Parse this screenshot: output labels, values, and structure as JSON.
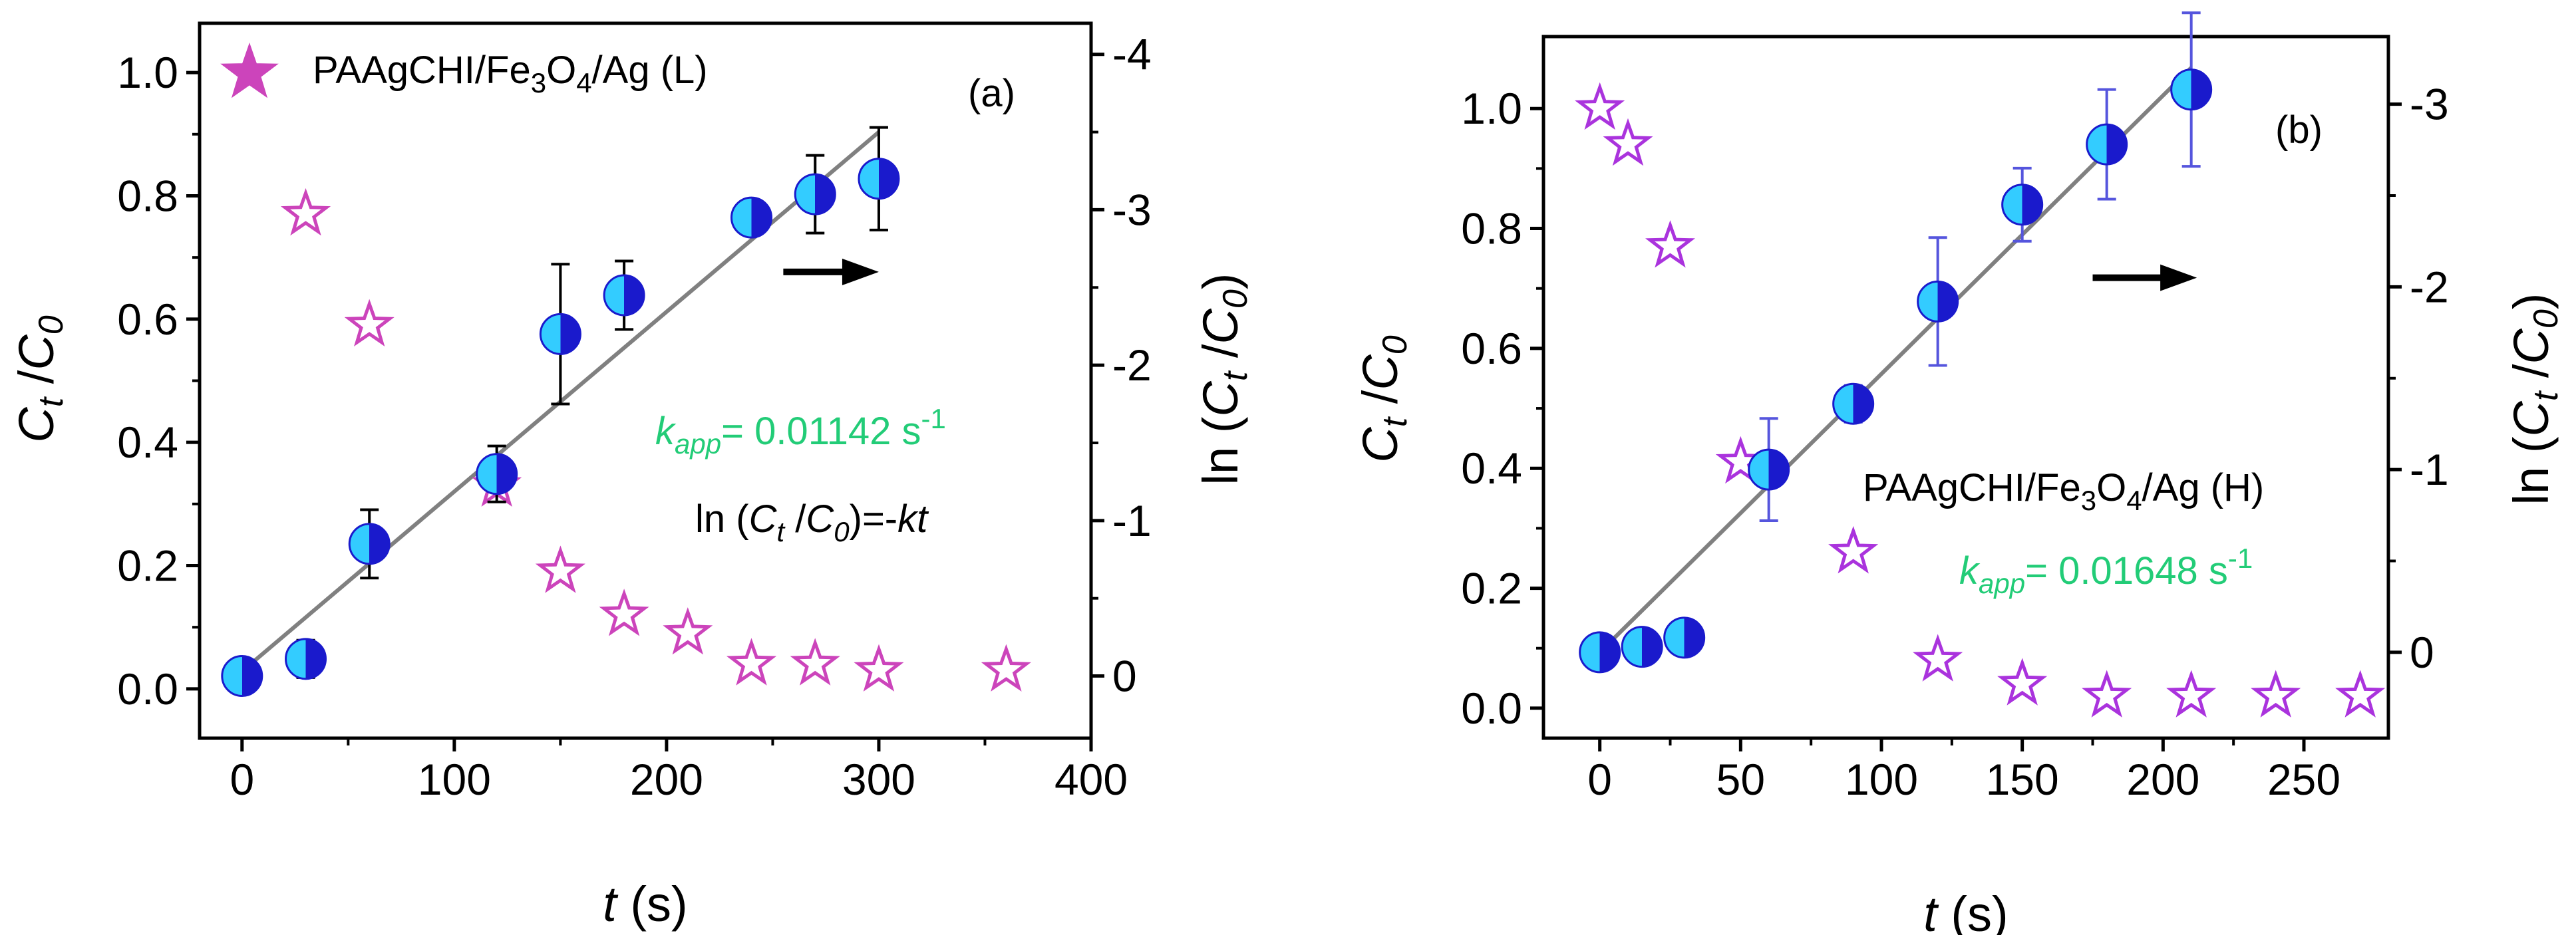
{
  "colors": {
    "circle_light": "#33ccff",
    "circle_dark": "#1a1acc",
    "fit_line": "#808080",
    "star_a": "#cc44bb",
    "star_b": "#aa33dd",
    "kapp_text": "#22cc77",
    "errbar_a": "#000000",
    "errbar_b": "#5555dd"
  },
  "chart_data": [
    {
      "type": "scatter",
      "panel_label": "(a)",
      "xlabel": "t (s)",
      "xlabel_parts": {
        "var": "t",
        "unit": " (s)"
      },
      "ylabel_left": "Ct /C0",
      "ylabel_left_parts": {
        "c": "C",
        "sub1": "t",
        "sep": " /",
        "c2": "C",
        "sub2": "0"
      },
      "ylabel_right": "ln (Ct /C0)",
      "ylabel_right_parts": {
        "pre": "ln (",
        "c": "C",
        "sub1": "t",
        "sep": " /",
        "c2": "C",
        "sub2": "0",
        "post": ")"
      },
      "xlim": [
        -20,
        400
      ],
      "ylim_left": [
        -0.08,
        1.08
      ],
      "ylim_right": [
        0.4,
        -4.2
      ],
      "xticks": [
        "0",
        "100",
        "200",
        "300",
        "400"
      ],
      "xtick_values": [
        0,
        100,
        200,
        300,
        400
      ],
      "yticks_left": [
        "0.0",
        "0.2",
        "0.4",
        "0.6",
        "0.8",
        "1.0"
      ],
      "ytick_left_values": [
        0,
        0.2,
        0.4,
        0.6,
        0.8,
        1.0
      ],
      "yticks_right": [
        "0",
        "-1",
        "-2",
        "-3",
        "-4"
      ],
      "ytick_right_values": [
        0,
        -1,
        -2,
        -3,
        -4
      ],
      "legend_label": "PAAgCHI/Fe3O4/Ag (L)",
      "legend_parts": {
        "a": "PAAgCHI/Fe",
        "sub": "3",
        "b": "O",
        "sub2": "4",
        "c": "/Ag (L)"
      },
      "kapp_parts": {
        "k": "k",
        "sub": "app",
        "eq": "= 0.01142 s",
        "sup": "-1"
      },
      "equation_parts": {
        "pre": "ln (",
        "c": "C",
        "sub1": "t",
        "sep": " /",
        "c2": "C",
        "sub2": "0",
        "post": ")=-",
        "kt": "kt"
      },
      "series": [
        {
          "name": "Ct/C0",
          "axis": "left",
          "marker": "star",
          "x": [
            30,
            60,
            120,
            150,
            180,
            210,
            240,
            270,
            300,
            360
          ],
          "y": [
            0.77,
            0.59,
            0.33,
            0.19,
            0.12,
            0.09,
            0.04,
            0.04,
            0.03,
            0.03
          ]
        },
        {
          "name": "ln (Ct/C0)",
          "axis": "right",
          "marker": "circle",
          "x": [
            0,
            30,
            60,
            120,
            150,
            180,
            240,
            270,
            300
          ],
          "y": [
            0.0,
            -0.11,
            -0.85,
            -1.3,
            -2.2,
            -2.45,
            -2.95,
            -3.1,
            -3.2
          ],
          "err": [
            0.0,
            0.12,
            0.22,
            0.18,
            0.45,
            0.22,
            0.0,
            0.25,
            0.33
          ]
        },
        {
          "name": "fit",
          "axis": "right",
          "marker": "line",
          "x": [
            0,
            300
          ],
          "y": [
            -0.03,
            -3.5
          ]
        }
      ],
      "arrow": {
        "x_start": 255,
        "x_end": 300,
        "y": -2.6,
        "axis": "right"
      }
    },
    {
      "type": "scatter",
      "panel_label": "(b)",
      "xlabel": "t (s)",
      "xlabel_parts": {
        "var": "t",
        "unit": " (s)"
      },
      "ylabel_left": "Ct /C0",
      "ylabel_left_parts": {
        "c": "C",
        "sub1": "t",
        "sep": " /",
        "c2": "C",
        "sub2": "0"
      },
      "ylabel_right": "ln (Ct /C0)",
      "ylabel_right_parts": {
        "pre": "ln (",
        "c": "C",
        "sub1": "t",
        "sep": " /",
        "c2": "C",
        "sub2": "0",
        "post": ")"
      },
      "xlim": [
        -20,
        280
      ],
      "ylim_left": [
        -0.05,
        1.12
      ],
      "ylim_right": [
        0.47,
        -3.37
      ],
      "xticks": [
        "0",
        "50",
        "100",
        "150",
        "200",
        "250"
      ],
      "xtick_values": [
        0,
        50,
        100,
        150,
        200,
        250
      ],
      "yticks_left": [
        "0.0",
        "0.2",
        "0.4",
        "0.6",
        "0.8",
        "1.0"
      ],
      "ytick_left_values": [
        0,
        0.2,
        0.4,
        0.6,
        0.8,
        1.0
      ],
      "yticks_right": [
        "0",
        "-1",
        "-2",
        "-3"
      ],
      "ytick_right_values": [
        0,
        -1,
        -2,
        -3
      ],
      "legend_label": "PAAgCHI/Fe3O4/Ag (H)",
      "legend_parts": {
        "a": "PAAgCHI/Fe",
        "sub": "3",
        "b": "O",
        "sub2": "4",
        "c": "/Ag (H)"
      },
      "kapp_parts": {
        "k": "k",
        "sub": "app",
        "eq": "= 0.01648 s",
        "sup": "-1"
      },
      "series": [
        {
          "name": "Ct/C0",
          "axis": "left",
          "marker": "star",
          "x": [
            0,
            10,
            25,
            50,
            90,
            120,
            150,
            180,
            210,
            240,
            270
          ],
          "y": [
            1.0,
            0.94,
            0.77,
            0.41,
            0.26,
            0.08,
            0.04,
            0.02,
            0.02,
            0.02,
            0.02
          ]
        },
        {
          "name": "ln (Ct/C0)",
          "axis": "right",
          "marker": "circle",
          "x": [
            0,
            15,
            30,
            60,
            90,
            120,
            150,
            180,
            210
          ],
          "y": [
            0.0,
            -0.03,
            -0.08,
            -1.0,
            -1.36,
            -1.92,
            -2.45,
            -2.78,
            -3.08
          ],
          "err": [
            0.0,
            0.0,
            0.0,
            0.28,
            0.1,
            0.35,
            0.2,
            0.3,
            0.42
          ]
        },
        {
          "name": "fit",
          "axis": "right",
          "marker": "line",
          "x": [
            0,
            210
          ],
          "y": [
            0.0,
            -3.2
          ]
        }
      ],
      "arrow": {
        "x_start": 175,
        "x_end": 212,
        "y": -2.05,
        "axis": "right"
      }
    }
  ]
}
